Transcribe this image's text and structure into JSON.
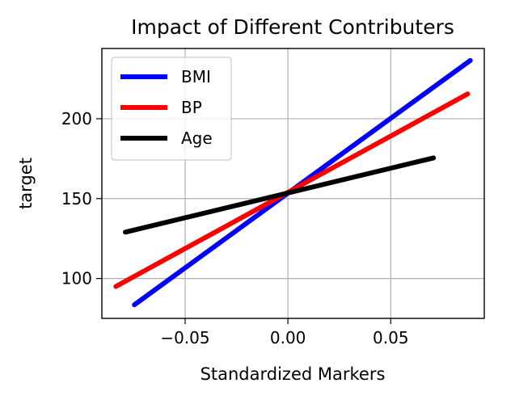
{
  "chart_data": {
    "type": "line",
    "title": "Impact of Different Contributers",
    "xlabel": "Standardized Markers",
    "ylabel": "target",
    "xlim": [
      -0.0905,
      0.0955
    ],
    "ylim": [
      75,
      244
    ],
    "xticks": [
      -0.05,
      0.0,
      0.05
    ],
    "xtick_labels": [
      "−0.05",
      "0.00",
      "0.05"
    ],
    "yticks": [
      100,
      150,
      200
    ],
    "ytick_labels": [
      "100",
      "150",
      "200"
    ],
    "grid": true,
    "legend_position": "top-left",
    "series": [
      {
        "name": "BMI",
        "color": "#0000ff",
        "x": [
          -0.0747,
          0.0887
        ],
        "y": [
          83.5,
          236.5
        ]
      },
      {
        "name": "BP",
        "color": "#ff0000",
        "x": [
          -0.0837,
          0.0874
        ],
        "y": [
          95.0,
          215.5
        ]
      },
      {
        "name": "Age",
        "color": "#000000",
        "x": [
          -0.0791,
          0.0708
        ],
        "y": [
          129.0,
          175.5
        ]
      }
    ]
  }
}
